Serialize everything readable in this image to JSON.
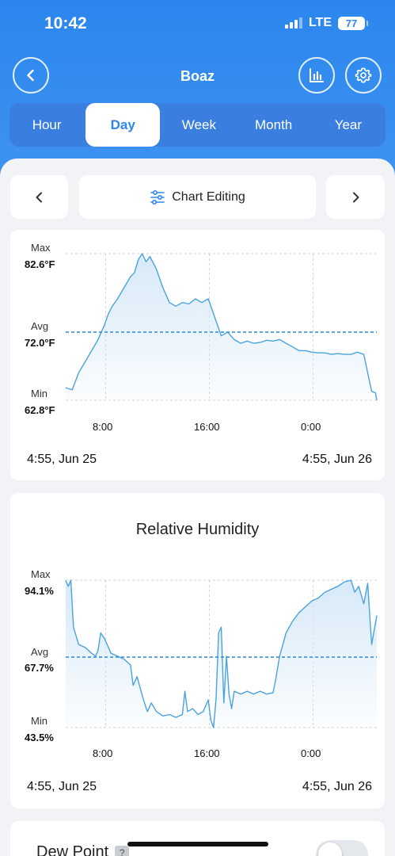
{
  "status_bar": {
    "time": "10:42",
    "network": "LTE",
    "battery": "77"
  },
  "nav": {
    "title": "Boaz"
  },
  "tabs": [
    {
      "label": "Hour",
      "active": false
    },
    {
      "label": "Day",
      "active": true
    },
    {
      "label": "Week",
      "active": false
    },
    {
      "label": "Month",
      "active": false
    },
    {
      "label": "Year",
      "active": false
    }
  ],
  "toolbar": {
    "prev_icon": "chevron-left-icon",
    "edit_label": "Chart Editing",
    "next_icon": "chevron-right-icon"
  },
  "colors": {
    "accent": "#2b86ee",
    "line": "#4aa3df",
    "fill": "#d7e9f8"
  },
  "chart_data": [
    {
      "type": "area",
      "title": "",
      "max_label": "Max",
      "max_value": "82.6°F",
      "avg_label": "Avg",
      "avg_value": "72.0°F",
      "min_label": "Min",
      "min_value": "62.8°F",
      "ylim": [
        62.8,
        82.6
      ],
      "avg": 72.0,
      "x_ticks": [
        "8:00",
        "16:00",
        "0:00"
      ],
      "x_tick_hours": [
        3.08,
        11.08,
        19.08
      ],
      "start_label": "4:55,  Jun 25",
      "end_label": "4:55,  Jun 26",
      "series": [
        {
          "x": [
            0,
            0.5,
            1,
            1.5,
            2,
            2.5,
            3,
            3.3,
            3.6,
            4,
            4.5,
            5,
            5.3,
            5.6,
            5.9,
            6.2,
            6.5,
            7,
            7.5,
            8,
            8.5,
            9,
            9.5,
            10,
            10.5,
            11,
            11.5,
            12,
            12.5,
            13,
            13.5,
            14,
            14.5,
            15,
            15.5,
            16,
            16.5,
            17,
            17.5,
            18,
            18.5,
            19,
            19.5,
            20,
            20.5,
            21,
            21.5,
            22,
            22.5,
            23,
            23.3,
            23.6,
            23.9,
            24
          ],
          "y": [
            64.5,
            64.2,
            66.5,
            68.0,
            69.5,
            71.0,
            73.0,
            74.5,
            75.5,
            76.5,
            78.0,
            79.5,
            80.0,
            81.8,
            82.6,
            81.5,
            82.2,
            80.5,
            78.0,
            76.0,
            75.5,
            76.0,
            75.8,
            76.5,
            76.0,
            76.5,
            74.0,
            71.5,
            72.0,
            71.0,
            70.5,
            70.8,
            70.5,
            70.6,
            70.9,
            70.8,
            71.0,
            70.5,
            70.0,
            69.5,
            69.5,
            69.3,
            69.2,
            69.2,
            69.0,
            69.1,
            69.0,
            69.0,
            69.3,
            69.0,
            66.5,
            64.0,
            63.8,
            62.8
          ]
        }
      ]
    },
    {
      "type": "area",
      "title": "Relative Humidity",
      "max_label": "Max",
      "max_value": "94.1%",
      "avg_label": "Avg",
      "avg_value": "67.7%",
      "min_label": "Min",
      "min_value": "43.5%",
      "ylim": [
        43.5,
        94.1
      ],
      "avg": 67.7,
      "x_ticks": [
        "8:00",
        "16:00",
        "0:00"
      ],
      "x_tick_hours": [
        3.08,
        11.08,
        19.08
      ],
      "start_label": "4:55,  Jun 25",
      "end_label": "4:55,  Jun 26",
      "series": [
        {
          "x": [
            0,
            0.2,
            0.4,
            0.6,
            1,
            1.5,
            2,
            2.3,
            2.5,
            2.7,
            3,
            3.5,
            4,
            4.5,
            5,
            5.2,
            5.5,
            6,
            6.3,
            6.6,
            7,
            7.5,
            8,
            8.5,
            9,
            9.2,
            9.4,
            9.8,
            10.2,
            10.6,
            11,
            11.2,
            11.4,
            11.6,
            11.8,
            12,
            12.2,
            12.4,
            12.6,
            12.8,
            13,
            13.5,
            14,
            14.5,
            15,
            15.5,
            16,
            16.2,
            16.5,
            17,
            17.5,
            18,
            18.5,
            19,
            19.5,
            20,
            20.5,
            21,
            21.5,
            22,
            22.3,
            22.6,
            23,
            23.3,
            23.6,
            24
          ],
          "y": [
            94.0,
            92.0,
            94.1,
            78.0,
            72.0,
            71.0,
            69.0,
            68.0,
            70.0,
            76.0,
            74.0,
            69.0,
            68.0,
            67.0,
            65.0,
            58.0,
            61.0,
            53.0,
            49.0,
            52.0,
            49.0,
            47.5,
            48.0,
            47.0,
            48.0,
            56.0,
            49.0,
            50.0,
            48.0,
            49.0,
            53.0,
            46.0,
            43.5,
            53.0,
            76.0,
            78.0,
            52.0,
            68.0,
            55.0,
            50.0,
            56.0,
            55.0,
            56.0,
            55.0,
            56.0,
            55.0,
            55.5,
            60.0,
            68.0,
            76.0,
            80.0,
            83.0,
            85.0,
            87.0,
            88.0,
            90.0,
            91.0,
            92.0,
            93.5,
            94.1,
            90.0,
            92.0,
            86.0,
            93.0,
            72.0,
            82.0
          ]
        }
      ]
    }
  ],
  "next_card": {
    "title": "Dew Point",
    "help": "?"
  }
}
